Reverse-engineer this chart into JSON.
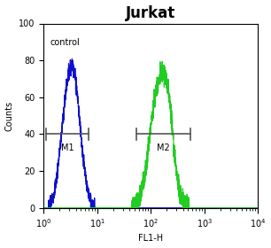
{
  "title": "Jurkat",
  "title_fontsize": 12,
  "title_fontweight": "bold",
  "xlabel": "FL1-H",
  "ylabel": "Counts",
  "xlim": [
    1,
    10000
  ],
  "ylim": [
    0,
    100
  ],
  "yticks": [
    0,
    20,
    40,
    60,
    80,
    100
  ],
  "control_label": "control",
  "m1_label": "M1",
  "m2_label": "M2",
  "blue_color": "#1010CC",
  "green_color": "#22CC22",
  "marker_y": 40,
  "m1_x1": 1.1,
  "m1_x2": 7.0,
  "m2_x1": 55.0,
  "m2_x2": 550.0,
  "bracket_color": "#555555",
  "bg_color": "#ffffff",
  "fig_color": "#ffffff"
}
